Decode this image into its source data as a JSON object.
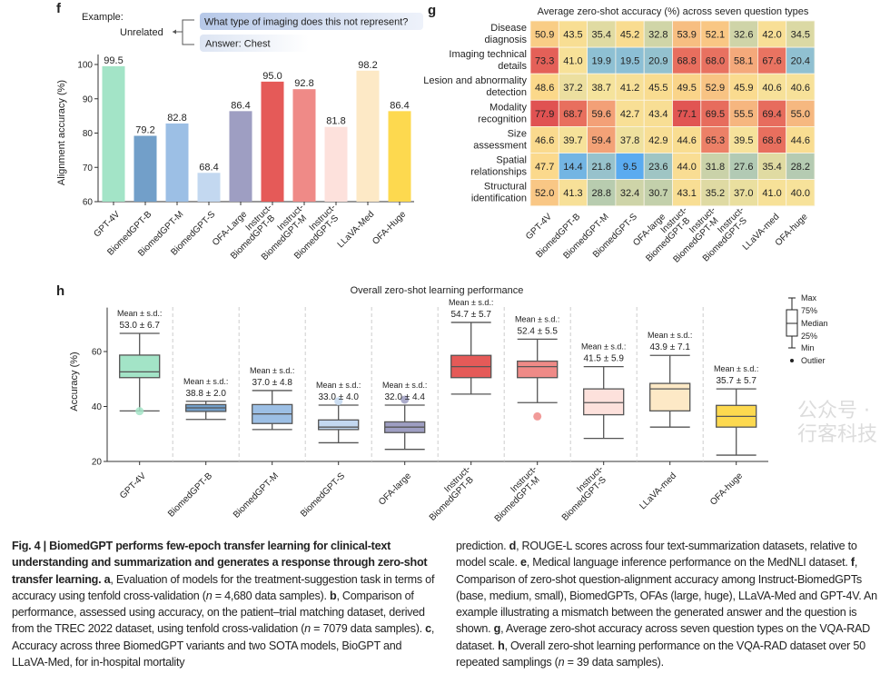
{
  "panel_labels": {
    "f": "f",
    "g": "g",
    "h": "h"
  },
  "example": {
    "label": "Example:",
    "verdict": "Unrelated",
    "question": "What type of imaging does this not represent?",
    "answer": "Answer: Chest"
  },
  "chart_data": [
    {
      "id": "f",
      "type": "bar",
      "title": "",
      "xlabel": "",
      "ylabel": "Alignment accuracy (%)",
      "ylim": [
        60,
        100
      ],
      "yticks": [
        60,
        70,
        80,
        90,
        100
      ],
      "categories": [
        "GPT-4V",
        "BiomedGPT-B",
        "BiomedGPT-M",
        "BiomedGPT-S",
        "OFA-Large",
        "Instruct-\nBiomedGPT-B",
        "Instruct-\nBiomedGPT-M",
        "Instruct-\nBiomedGPT-S",
        "LLaVA-Med",
        "OFA-Huge"
      ],
      "values": [
        99.5,
        79.2,
        82.8,
        68.4,
        86.4,
        95.0,
        92.8,
        81.8,
        98.2,
        86.4
      ],
      "value_labels": [
        "99.5",
        "79.2",
        "82.8",
        "68.4",
        "86.4",
        "95.0",
        "92.8",
        "81.8",
        "98.2",
        "86.4"
      ],
      "colors": [
        "#a3e4c7",
        "#729fc9",
        "#9cbfe5",
        "#c3d8f0",
        "#9e9ec2",
        "#e55a58",
        "#ef8a87",
        "#fde1dc",
        "#fde9c6",
        "#fdd94f"
      ],
      "grid": false
    },
    {
      "id": "g",
      "type": "heatmap",
      "title": "Average zero-shot accuracy (%) across seven question types",
      "rows": [
        "Disease\ndiagnosis",
        "Imaging technical\ndetails",
        "Lesion and abnormality\ndetection",
        "Modality\nrecognition",
        "Size\nassessment",
        "Spatial\nrelationships",
        "Structural\nidentification"
      ],
      "columns": [
        "GPT-4V",
        "BiomedGPT-B",
        "BiomedGPT-M",
        "BiomedGPT-S",
        "OFA-large",
        "Instruct-\nBiomedGPT-B",
        "Instruct-\nBiomedGPT-M",
        "Instruct-\nBiomedGPT-S",
        "LLaVA-med",
        "OFA-huge"
      ],
      "values": [
        [
          50.9,
          43.5,
          35.4,
          45.2,
          32.8,
          53.9,
          52.1,
          32.6,
          42.0,
          34.5
        ],
        [
          73.3,
          41.0,
          19.9,
          19.5,
          20.9,
          68.8,
          68.0,
          58.1,
          67.6,
          20.4
        ],
        [
          48.6,
          37.2,
          38.7,
          41.2,
          45.5,
          49.5,
          52.9,
          45.9,
          40.6,
          40.6
        ],
        [
          77.9,
          68.7,
          59.6,
          42.7,
          43.4,
          77.1,
          69.5,
          55.5,
          69.4,
          55.0
        ],
        [
          46.6,
          39.7,
          59.4,
          37.8,
          42.9,
          44.6,
          65.3,
          39.5,
          68.6,
          44.6
        ],
        [
          47.7,
          14.4,
          21.8,
          9.5,
          23.6,
          44.0,
          31.8,
          27.6,
          35.4,
          28.2
        ],
        [
          52.0,
          41.3,
          28.8,
          32.4,
          30.7,
          43.1,
          35.2,
          37.0,
          41.0,
          40.0
        ]
      ],
      "colormap": [
        "#5aabf0",
        "#8bbfd6",
        "#b9ccae",
        "#f6e39c",
        "#fbd88a",
        "#f4a77a",
        "#e8705f",
        "#e05252"
      ]
    },
    {
      "id": "h",
      "type": "box",
      "title": "Overall zero-shot learning performance",
      "ylabel": "Accuracy (%)",
      "ylim": [
        20,
        76
      ],
      "yticks": [
        20,
        40,
        60
      ],
      "categories": [
        "GPT-4V",
        "BiomedGPT-B",
        "BiomedGPT-M",
        "BiomedGPT-S",
        "OFA-large",
        "Instruct-\nBiomedGPT-B",
        "Instruct-\nBiomedGPT-M",
        "Instruct-\nBiomedGPT-S",
        "LLaVA-med",
        "OFA-huge"
      ],
      "boxes": [
        {
          "min": 38.4,
          "q1": 50.5,
          "median": 52.6,
          "q3": 58.7,
          "max": 66.6,
          "outliers": [
            38.3
          ],
          "mean_sd": "53.0 ± 6.7"
        },
        {
          "min": 35.3,
          "q1": 38.2,
          "median": 39.5,
          "q3": 40.7,
          "max": 41.9,
          "outliers": [],
          "mean_sd": "38.8 ± 2.0"
        },
        {
          "min": 31.6,
          "q1": 33.8,
          "median": 37.3,
          "q3": 40.7,
          "max": 45.8,
          "outliers": [],
          "mean_sd": "37.0 ± 4.8"
        },
        {
          "min": 26.8,
          "q1": 31.6,
          "median": 32.5,
          "q3": 35.1,
          "max": 40.5,
          "outliers": [
            41.9
          ],
          "mean_sd": "33.0 ± 4.0"
        },
        {
          "min": 24.4,
          "q1": 30.5,
          "median": 32.5,
          "q3": 34.4,
          "max": 40.5,
          "outliers": [
            42.5
          ],
          "mean_sd": "32.0 ± 4.4"
        },
        {
          "min": 44.5,
          "q1": 50.5,
          "median": 54.5,
          "q3": 58.6,
          "max": 70.6,
          "outliers": [],
          "mean_sd": "54.7 ± 5.7"
        },
        {
          "min": 41.4,
          "q1": 50.5,
          "median": 54.5,
          "q3": 56.5,
          "max": 64.5,
          "outliers": [
            36.4
          ],
          "mean_sd": "52.4 ± 5.5"
        },
        {
          "min": 28.4,
          "q1": 37.0,
          "median": 41.4,
          "q3": 46.4,
          "max": 54.5,
          "outliers": [],
          "mean_sd": "41.5 ± 5.9"
        },
        {
          "min": 32.5,
          "q1": 38.4,
          "median": 46.4,
          "q3": 48.4,
          "max": 58.6,
          "outliers": [],
          "mean_sd": "43.9 ± 7.1"
        },
        {
          "min": 22.3,
          "q1": 32.5,
          "median": 36.4,
          "q3": 40.4,
          "max": 46.4,
          "outliers": [],
          "mean_sd": "35.7 ± 5.7"
        }
      ],
      "mean_label": "Mean ± s.d.:",
      "colors": [
        "#a3e4c7",
        "#729fc9",
        "#9cbfe5",
        "#c3d8f0",
        "#9e9ec2",
        "#e55a58",
        "#ef8a87",
        "#fde1dc",
        "#fde9c6",
        "#fdd94f"
      ],
      "legend": [
        "Max",
        "75%",
        "Median",
        "25%",
        "Min",
        "Outlier"
      ],
      "legend_position": "top-right"
    }
  ],
  "caption": {
    "left": [
      {
        "t": "Fig. 4 | BiomedGPT performs few-epoch transfer learning for clinical-text understanding and summarization and generates a response through zero-shot transfer learning. a",
        "b": true
      },
      {
        "t": ", Evaluation of models for the treatment-suggestion task in terms of accuracy using tenfold cross-validation ("
      },
      {
        "t": "n",
        "i": true
      },
      {
        "t": " = 4,680 data samples). "
      },
      {
        "t": "b",
        "b": true
      },
      {
        "t": ", Comparison of performance, assessed using accuracy, on the patient–trial matching dataset, derived from the TREC 2022 dataset, using tenfold cross-validation ("
      },
      {
        "t": "n",
        "i": true
      },
      {
        "t": " = 7079 data samples). "
      },
      {
        "t": "c",
        "b": true
      },
      {
        "t": ", Accuracy across three BiomedGPT variants and two SOTA models, BioGPT and LLaVA-Med, for in-hospital mortality"
      }
    ],
    "right": [
      {
        "t": "prediction. "
      },
      {
        "t": "d",
        "b": true
      },
      {
        "t": ", ROUGE-L scores across four text-summarization datasets, relative to model scale. "
      },
      {
        "t": "e",
        "b": true
      },
      {
        "t": ", Medical language inference performance on the MedNLI dataset. "
      },
      {
        "t": "f",
        "b": true
      },
      {
        "t": ", Comparison of zero-shot question-alignment accuracy among Instruct-BiomedGPTs (base, medium, small), BiomedGPTs, OFAs (large, huge), LLaVA-Med and GPT-4V. An example illustrating a mismatch between the generated answer and the question is shown. "
      },
      {
        "t": "g",
        "b": true
      },
      {
        "t": ", Average zero-shot accuracy across seven question types on the VQA-RAD dataset. "
      },
      {
        "t": "h",
        "b": true
      },
      {
        "t": ", Overall zero-shot learning performance on the VQA-RAD dataset over 50 repeated samplings ("
      },
      {
        "t": "n",
        "i": true
      },
      {
        "t": " = 39 data samples)."
      }
    ]
  },
  "watermark": "公众号 · 行客科技"
}
